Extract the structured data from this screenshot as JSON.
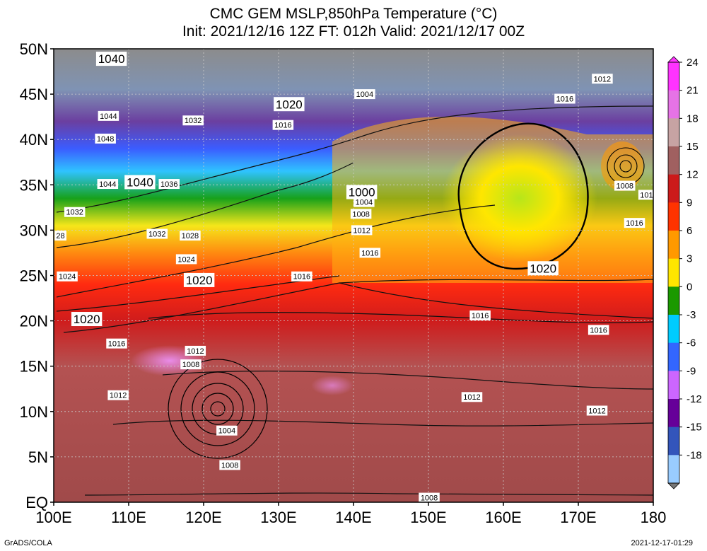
{
  "title": {
    "line1": "CMC GEM MSLP,850hPa Temperature (°C)",
    "line2": "Init: 2021/12/16 12Z  FT: 012h  Valid: 2021/12/17 00Z"
  },
  "axes": {
    "lat_labels": [
      "50N",
      "45N",
      "40N",
      "35N",
      "30N",
      "25N",
      "20N",
      "15N",
      "10N",
      "5N",
      "EQ"
    ],
    "lon_labels": [
      "100E",
      "110E",
      "120E",
      "130E",
      "140E",
      "150E",
      "160E",
      "170E",
      "180"
    ]
  },
  "colorbar": {
    "ticks": [
      "24",
      "21",
      "18",
      "15",
      "12",
      "9",
      "6",
      "3",
      "0",
      "-3",
      "-6",
      "-9",
      "-12",
      "-15",
      "-18"
    ],
    "colors": [
      "#ff33ff",
      "#e673e6",
      "#c7a3a3",
      "#a06060",
      "#cc1a1a",
      "#ff3300",
      "#ff9900",
      "#ffe600",
      "#1a9900",
      "#00ccff",
      "#3366ff",
      "#cc66ff",
      "#660099",
      "#3355bb",
      "#99ccff"
    ]
  },
  "isobar_labels": [
    {
      "text": "1040",
      "lon": 107.7,
      "lat": 48.9,
      "size": "big"
    },
    {
      "text": "1044",
      "lon": 107.3,
      "lat": 42.6,
      "size": "small"
    },
    {
      "text": "1048",
      "lon": 106.9,
      "lat": 40.1,
      "size": "small"
    },
    {
      "text": "1044",
      "lon": 107.2,
      "lat": 35.1,
      "size": "small"
    },
    {
      "text": "1040",
      "lon": 111.5,
      "lat": 35.3,
      "size": "big"
    },
    {
      "text": "1036",
      "lon": 115.4,
      "lat": 35.1,
      "size": "small"
    },
    {
      "text": "1032",
      "lon": 102.8,
      "lat": 32.0,
      "size": "small"
    },
    {
      "text": "28",
      "lon": 100.9,
      "lat": 29.4,
      "size": "small"
    },
    {
      "text": "1032",
      "lon": 113.8,
      "lat": 29.6,
      "size": "small"
    },
    {
      "text": "1028",
      "lon": 118.2,
      "lat": 29.4,
      "size": "small"
    },
    {
      "text": "1024",
      "lon": 117.7,
      "lat": 26.8,
      "size": "small"
    },
    {
      "text": "1024",
      "lon": 101.8,
      "lat": 24.9,
      "size": "small"
    },
    {
      "text": "1020",
      "lon": 119.4,
      "lat": 24.5,
      "size": "big"
    },
    {
      "text": "1020",
      "lon": 104.4,
      "lat": 20.2,
      "size": "big"
    },
    {
      "text": "1016",
      "lon": 108.4,
      "lat": 17.5,
      "size": "small"
    },
    {
      "text": "1012",
      "lon": 118.9,
      "lat": 16.7,
      "size": "small"
    },
    {
      "text": "1008",
      "lon": 118.3,
      "lat": 15.2,
      "size": "small"
    },
    {
      "text": "1012",
      "lon": 108.6,
      "lat": 11.8,
      "size": "small"
    },
    {
      "text": "1004",
      "lon": 123.1,
      "lat": 7.9,
      "size": "small"
    },
    {
      "text": "1008",
      "lon": 123.5,
      "lat": 4.1,
      "size": "small"
    },
    {
      "text": "1032",
      "lon": 118.6,
      "lat": 42.1,
      "size": "small"
    },
    {
      "text": "1020",
      "lon": 131.4,
      "lat": 43.9,
      "size": "big"
    },
    {
      "text": "1016",
      "lon": 130.6,
      "lat": 41.6,
      "size": "small"
    },
    {
      "text": "1004",
      "lon": 141.5,
      "lat": 45.0,
      "size": "small"
    },
    {
      "text": "1000",
      "lon": 141.1,
      "lat": 34.2,
      "size": "big"
    },
    {
      "text": "1004",
      "lon": 141.4,
      "lat": 33.1,
      "size": "small"
    },
    {
      "text": "1008",
      "lon": 141.0,
      "lat": 31.8,
      "size": "small"
    },
    {
      "text": "1012",
      "lon": 141.1,
      "lat": 30.0,
      "size": "small"
    },
    {
      "text": "1016",
      "lon": 142.2,
      "lat": 27.5,
      "size": "small"
    },
    {
      "text": "1016",
      "lon": 133.1,
      "lat": 24.9,
      "size": "small"
    },
    {
      "text": "1016",
      "lon": 156.9,
      "lat": 20.6,
      "size": "small"
    },
    {
      "text": "1016",
      "lon": 172.7,
      "lat": 19.0,
      "size": "small"
    },
    {
      "text": "1012",
      "lon": 155.8,
      "lat": 11.6,
      "size": "small"
    },
    {
      "text": "1012",
      "lon": 172.5,
      "lat": 10.1,
      "size": "small"
    },
    {
      "text": "1008",
      "lon": 150.1,
      "lat": 0.5,
      "size": "small"
    },
    {
      "text": "1012",
      "lon": 173.2,
      "lat": 46.7,
      "size": "small"
    },
    {
      "text": "1016",
      "lon": 168.2,
      "lat": 44.5,
      "size": "small"
    },
    {
      "text": "1020",
      "lon": 165.3,
      "lat": 25.8,
      "size": "big"
    },
    {
      "text": "1008",
      "lon": 176.2,
      "lat": 34.9,
      "size": "small"
    },
    {
      "text": "101",
      "lon": 179.1,
      "lat": 33.9,
      "size": "small"
    },
    {
      "text": "1016",
      "lon": 177.5,
      "lat": 30.8,
      "size": "small"
    }
  ],
  "footer": {
    "left": "GrADS/COLA",
    "right": "2021-12-17-01:29"
  }
}
